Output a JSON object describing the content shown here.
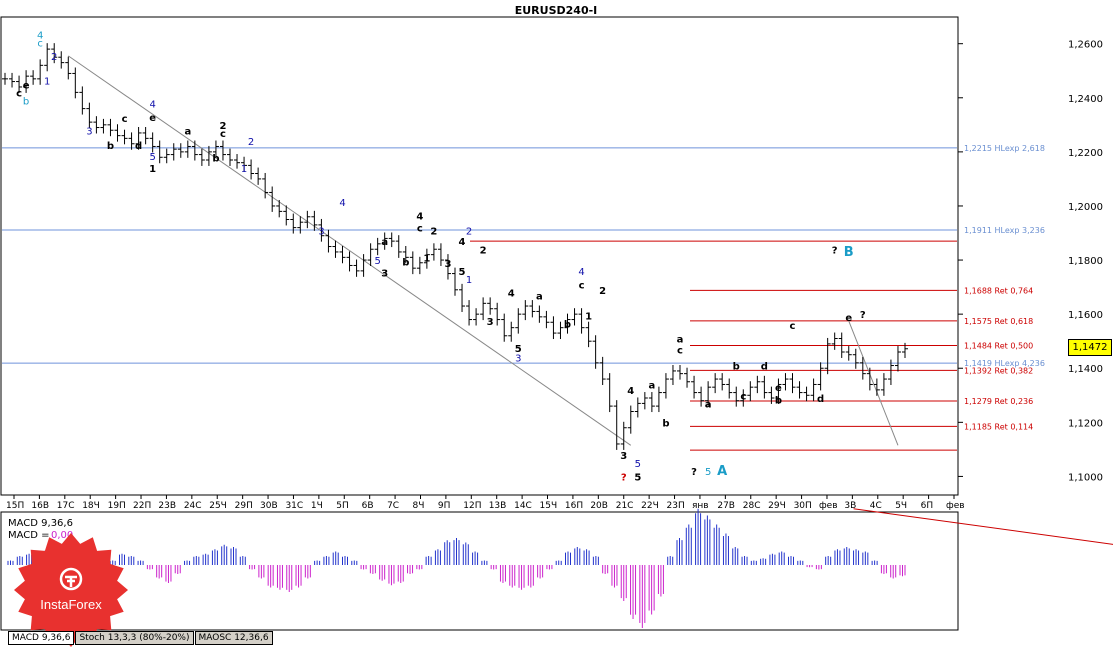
{
  "title": "EURUSD240-I",
  "current_price": "1,1472",
  "indicator_label": "MACD 9,36,6",
  "indicator_value_label": "MACD = ",
  "indicator_value": "0,00",
  "tabs": [
    "MACD 9,36,6",
    "Stoch 13,3,3 (80%-20%)",
    "MAOSC 12,36,6"
  ],
  "logo": {
    "text": "InstaForex",
    "color": "#e8312f"
  },
  "colors": {
    "candle": "#000000",
    "fib": "#cc0000",
    "hline": "#3366cc",
    "macd_pos": "#2233cc",
    "macd_neg": "#cc22cc"
  },
  "chart_data": {
    "type": "line",
    "title": "EURUSD240-I",
    "yticks": [
      "1,2600",
      "1,2400",
      "1,2200",
      "1,2000",
      "1,1800",
      "1,1600",
      "1,1400",
      "1,1200",
      "1,1000"
    ],
    "ylim": [
      1.0935,
      1.2695
    ],
    "xticks": [
      "15П",
      "16В",
      "17С",
      "18Ч",
      "19П",
      "22П",
      "23В",
      "24С",
      "25Ч",
      "29П",
      "30В",
      "31С",
      "1Ч",
      "5П",
      "6В",
      "7С",
      "8Ч",
      "9П",
      "12П",
      "13В",
      "14С",
      "15Ч",
      "16П",
      "20В",
      "21С",
      "22Ч",
      "23П",
      "янв",
      "27В",
      "28С",
      "29Ч",
      "30П",
      "фев",
      "3В",
      "4С",
      "5Ч",
      "6П",
      "фев"
    ],
    "close": [
      1.247,
      1.246,
      1.244,
      1.248,
      1.247,
      1.252,
      1.258,
      1.255,
      1.253,
      1.249,
      1.242,
      1.236,
      1.231,
      1.229,
      1.23,
      1.228,
      1.226,
      1.225,
      1.223,
      1.227,
      1.225,
      1.222,
      1.218,
      1.219,
      1.221,
      1.22,
      1.222,
      1.219,
      1.217,
      1.22,
      1.222,
      1.219,
      1.217,
      1.216,
      1.215,
      1.212,
      1.21,
      1.205,
      1.2,
      1.198,
      1.195,
      1.192,
      1.194,
      1.196,
      1.193,
      1.189,
      1.185,
      1.183,
      1.181,
      1.178,
      1.176,
      1.18,
      1.184,
      1.186,
      1.188,
      1.187,
      1.183,
      1.181,
      1.177,
      1.179,
      1.182,
      1.184,
      1.18,
      1.175,
      1.169,
      1.163,
      1.158,
      1.16,
      1.164,
      1.162,
      1.158,
      1.152,
      1.155,
      1.16,
      1.163,
      1.161,
      1.159,
      1.157,
      1.153,
      1.155,
      1.158,
      1.16,
      1.155,
      1.15,
      1.142,
      1.136,
      1.126,
      1.112,
      1.118,
      1.124,
      1.127,
      1.129,
      1.126,
      1.131,
      1.136,
      1.139,
      1.138,
      1.135,
      1.131,
      1.128,
      1.133,
      1.136,
      1.134,
      1.131,
      1.128,
      1.13,
      1.133,
      1.135,
      1.131,
      1.129,
      1.134,
      1.136,
      1.133,
      1.131,
      1.13,
      1.134,
      1.14,
      1.149,
      1.151,
      1.146,
      1.145,
      1.142,
      1.138,
      1.134,
      1.132,
      1.136,
      1.141,
      1.146,
      1.1472
    ],
    "horizontal_levels": [
      {
        "value": 1.2215,
        "label": "1,2215 HLexp 2,618",
        "kind": "hline"
      },
      {
        "value": 1.1911,
        "label": "1,1911 HLexp 3,236",
        "kind": "hline"
      },
      {
        "value": 1.1419,
        "label": "1,1419 HLexp 4,236",
        "kind": "hline"
      },
      {
        "value": 1.1688,
        "label": "1,1688 Ret 0,764",
        "kind": "fib"
      },
      {
        "value": 1.1575,
        "label": "1,1575 Ret 0,618",
        "kind": "fib"
      },
      {
        "value": 1.1484,
        "label": "1,1484 Ret 0,500",
        "kind": "fib"
      },
      {
        "value": 1.1392,
        "label": "1,1392 Ret 0,382",
        "kind": "fib"
      },
      {
        "value": 1.1279,
        "label": "1,1279 Ret 0,236",
        "kind": "fib"
      },
      {
        "value": 1.1185,
        "label": "1,1185 Ret 0,114",
        "kind": "fib"
      },
      {
        "value": 1.1097,
        "label": "",
        "kind": "fib"
      },
      {
        "value": 1.187,
        "label": "",
        "kind": "fib"
      }
    ],
    "wave_labels": [
      {
        "text": "4",
        "i": 5,
        "v": 1.262,
        "color": "#1a9cc7"
      },
      {
        "text": "c",
        "i": 5,
        "v": 1.259,
        "color": "#1a9cc7"
      },
      {
        "text": "2",
        "i": 7,
        "v": 1.254,
        "color": "#1010aa"
      },
      {
        "text": "1",
        "i": 6,
        "v": 1.245,
        "color": "#1010aa"
      },
      {
        "text": "e",
        "i": 3,
        "v": 1.2435,
        "color": "#000"
      },
      {
        "text": "c",
        "i": 2,
        "v": 1.2405,
        "color": "#000"
      },
      {
        "text": "b",
        "i": 3,
        "v": 1.2375,
        "color": "#1a9cc7"
      },
      {
        "text": "3",
        "i": 12,
        "v": 1.2265,
        "color": "#1010aa"
      },
      {
        "text": "c",
        "i": 17,
        "v": 1.231,
        "color": "#000"
      },
      {
        "text": "4",
        "i": 21,
        "v": 1.2365,
        "color": "#1010aa"
      },
      {
        "text": "e",
        "i": 21,
        "v": 1.2315,
        "color": "#000"
      },
      {
        "text": "b",
        "i": 15,
        "v": 1.221,
        "color": "#000"
      },
      {
        "text": "d",
        "i": 19,
        "v": 1.221,
        "color": "#000"
      },
      {
        "text": "5",
        "i": 21,
        "v": 1.217,
        "color": "#1010aa"
      },
      {
        "text": "1",
        "i": 21,
        "v": 1.2125,
        "color": "#000"
      },
      {
        "text": "a",
        "i": 26,
        "v": 1.2265,
        "color": "#000"
      },
      {
        "text": "2",
        "i": 31,
        "v": 1.2285,
        "color": "#000"
      },
      {
        "text": "c",
        "i": 31,
        "v": 1.2255,
        "color": "#000"
      },
      {
        "text": "2",
        "i": 35,
        "v": 1.2225,
        "color": "#1010aa"
      },
      {
        "text": "b",
        "i": 30,
        "v": 1.2165,
        "color": "#000"
      },
      {
        "text": "1",
        "i": 34,
        "v": 1.2125,
        "color": "#1010aa"
      },
      {
        "text": "4",
        "i": 48,
        "v": 1.2,
        "color": "#1010aa"
      },
      {
        "text": "3",
        "i": 45,
        "v": 1.1895,
        "color": "#1010aa"
      },
      {
        "text": "4",
        "i": 59,
        "v": 1.195,
        "color": "#000"
      },
      {
        "text": "c",
        "i": 59,
        "v": 1.1905,
        "color": "#000"
      },
      {
        "text": "2",
        "i": 61,
        "v": 1.1895,
        "color": "#000"
      },
      {
        "text": "2",
        "i": 66,
        "v": 1.1895,
        "color": "#1010aa"
      },
      {
        "text": "a",
        "i": 54,
        "v": 1.1855,
        "color": "#000"
      },
      {
        "text": "4",
        "i": 65,
        "v": 1.1855,
        "color": "#000"
      },
      {
        "text": "2",
        "i": 68,
        "v": 1.1825,
        "color": "#000"
      },
      {
        "text": "5",
        "i": 53,
        "v": 1.1785,
        "color": "#1010aa"
      },
      {
        "text": "b",
        "i": 57,
        "v": 1.178,
        "color": "#000"
      },
      {
        "text": "1",
        "i": 60,
        "v": 1.1795,
        "color": "#000"
      },
      {
        "text": "3",
        "i": 63,
        "v": 1.1775,
        "color": "#000"
      },
      {
        "text": "5",
        "i": 65,
        "v": 1.1745,
        "color": "#000"
      },
      {
        "text": "1",
        "i": 66,
        "v": 1.1715,
        "color": "#1010aa"
      },
      {
        "text": "3",
        "i": 54,
        "v": 1.174,
        "color": "#000"
      },
      {
        "text": "4",
        "i": 82,
        "v": 1.1745,
        "color": "#1010aa"
      },
      {
        "text": "c",
        "i": 82,
        "v": 1.1695,
        "color": "#000"
      },
      {
        "text": "4",
        "i": 72,
        "v": 1.1665,
        "color": "#000"
      },
      {
        "text": "a",
        "i": 76,
        "v": 1.1655,
        "color": "#000"
      },
      {
        "text": "2",
        "i": 85,
        "v": 1.1675,
        "color": "#000"
      },
      {
        "text": "3",
        "i": 69,
        "v": 1.156,
        "color": "#000"
      },
      {
        "text": "1",
        "i": 83,
        "v": 1.158,
        "color": "#000"
      },
      {
        "text": "b",
        "i": 80,
        "v": 1.155,
        "color": "#000"
      },
      {
        "text": "5",
        "i": 73,
        "v": 1.146,
        "color": "#000"
      },
      {
        "text": "3",
        "i": 73,
        "v": 1.1425,
        "color": "#1010aa"
      },
      {
        "text": "4",
        "i": 89,
        "v": 1.1305,
        "color": "#000"
      },
      {
        "text": "3",
        "i": 88,
        "v": 1.1065,
        "color": "#000"
      },
      {
        "text": "5",
        "i": 90,
        "v": 1.1035,
        "color": "#1010aa"
      },
      {
        "text": "5",
        "i": 90,
        "v": 1.0985,
        "color": "#000"
      },
      {
        "text": "?",
        "i": 88,
        "v": 1.0985,
        "color": "#cc0000"
      },
      {
        "text": "a",
        "i": 92,
        "v": 1.1325,
        "color": "#000"
      },
      {
        "text": "b",
        "i": 94,
        "v": 1.1185,
        "color": "#000"
      },
      {
        "text": "a",
        "i": 96,
        "v": 1.1495,
        "color": "#000"
      },
      {
        "text": "c",
        "i": 96,
        "v": 1.1455,
        "color": "#000"
      },
      {
        "text": "a",
        "i": 100,
        "v": 1.1255,
        "color": "#000"
      },
      {
        "text": "c",
        "i": 105,
        "v": 1.1285,
        "color": "#000"
      },
      {
        "text": "b",
        "i": 104,
        "v": 1.1395,
        "color": "#000"
      },
      {
        "text": "d",
        "i": 108,
        "v": 1.1395,
        "color": "#000"
      },
      {
        "text": "e",
        "i": 110,
        "v": 1.1315,
        "color": "#000"
      },
      {
        "text": "b",
        "i": 110,
        "v": 1.127,
        "color": "#000"
      },
      {
        "text": "c",
        "i": 112,
        "v": 1.1545,
        "color": "#000"
      },
      {
        "text": "d",
        "i": 116,
        "v": 1.1275,
        "color": "#000"
      },
      {
        "text": "e",
        "i": 120,
        "v": 1.1575,
        "color": "#000"
      },
      {
        "text": "?",
        "i": 122,
        "v": 1.1585,
        "color": "#000"
      },
      {
        "text": "?",
        "i": 118,
        "v": 1.1825,
        "color": "#000"
      },
      {
        "text": "B",
        "i": 120,
        "v": 1.1815,
        "color": "#1a9cc7"
      },
      {
        "text": "?",
        "i": 98,
        "v": 1.1005,
        "color": "#000"
      },
      {
        "text": "5",
        "i": 100,
        "v": 1.1005,
        "color": "#1a9cc7"
      },
      {
        "text": "A",
        "i": 102,
        "v": 1.1005,
        "color": "#1a9cc7"
      }
    ],
    "trend_lines": [
      {
        "from": [
          9,
          1.2555
        ],
        "to": [
          89,
          1.1115
        ],
        "color": "#888888"
      },
      {
        "from": [
          120,
          1.1575
        ],
        "to": [
          127,
          1.1115
        ],
        "color": "#888888"
      }
    ],
    "macd_histogram": [
      0.1,
      0.2,
      0.25,
      0.3,
      0.35,
      0.2,
      0.1,
      -0.1,
      -0.2,
      -0.2,
      -0.1,
      0.1,
      0.25,
      0.2,
      0.1,
      -0.1,
      -0.3,
      -0.4,
      -0.2,
      0.1,
      0.2,
      0.25,
      0.35,
      0.45,
      0.4,
      0.2,
      -0.1,
      -0.3,
      -0.5,
      -0.55,
      -0.6,
      -0.5,
      -0.3,
      0.1,
      0.2,
      0.3,
      0.2,
      0.1,
      -0.1,
      -0.2,
      -0.35,
      -0.45,
      -0.4,
      -0.2,
      -0.1,
      0.2,
      0.35,
      0.55,
      0.6,
      0.5,
      0.3,
      0.1,
      -0.1,
      -0.4,
      -0.5,
      -0.55,
      -0.5,
      -0.3,
      -0.1,
      0.1,
      0.3,
      0.4,
      0.35,
      0.2,
      -0.2,
      -0.5,
      -0.8,
      -1.2,
      -1.4,
      -1.1,
      -0.7,
      0.2,
      0.6,
      0.9,
      1.25,
      1.1,
      0.9,
      0.7,
      0.4,
      0.2,
      0.1,
      0.15,
      0.25,
      0.3,
      0.2,
      0.1,
      -0.05,
      -0.1,
      0.2,
      0.35,
      0.4,
      0.35,
      0.3,
      0.1,
      -0.2,
      -0.3,
      -0.25
    ],
    "macd_signal_line": {
      "from": [
        91,
        1.25
      ],
      "to": [
        121,
        0.4
      ]
    }
  }
}
